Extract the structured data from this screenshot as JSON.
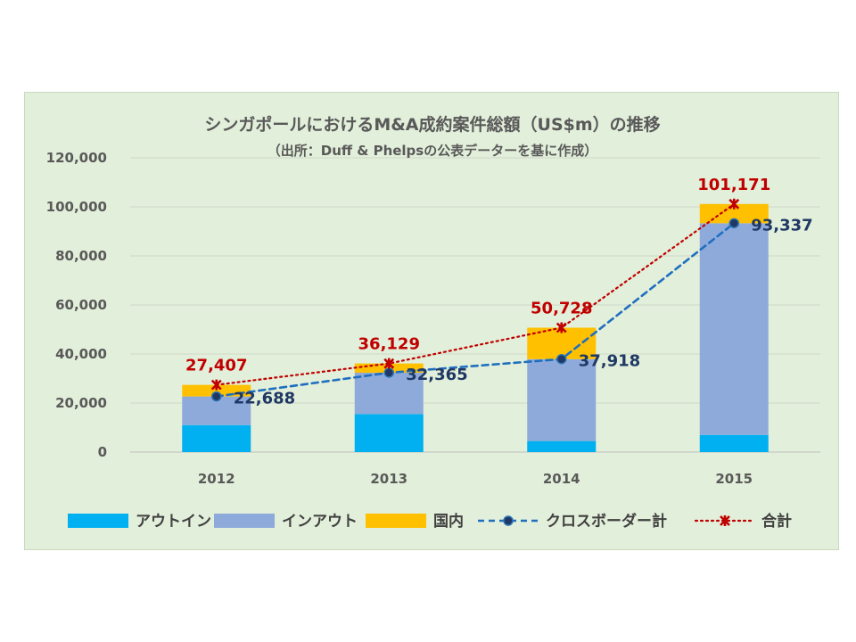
{
  "chart_data": {
    "type": "bar",
    "title": "シンガポールにおけるM&A成約案件総額（US$m）の推移",
    "subtitle": "（出所：Duff & Phelpsの公表データーを基に作成）",
    "categories": [
      "2012",
      "2013",
      "2014",
      "2015"
    ],
    "ylim": [
      0,
      120000
    ],
    "yticks": [
      "0",
      "20,000",
      "40,000",
      "60,000",
      "80,000",
      "100,000",
      "120,000"
    ],
    "ytick_values": [
      0,
      20000,
      40000,
      60000,
      80000,
      100000,
      120000
    ],
    "stacked": true,
    "series": [
      {
        "name": "アウトイン",
        "type": "bar",
        "color": "#00b0f0",
        "values": [
          11000,
          15500,
          4500,
          7000
        ]
      },
      {
        "name": "インアウト",
        "type": "bar",
        "color": "#8eaadb",
        "values": [
          11688,
          16865,
          33418,
          86337
        ]
      },
      {
        "name": "国内",
        "type": "bar",
        "color": "#ffc000",
        "values": [
          4719,
          3764,
          12810,
          7834
        ]
      },
      {
        "name": "クロスボーダー計",
        "type": "line",
        "color": "#1f6fbf",
        "values": [
          22688,
          32365,
          37918,
          93337
        ],
        "labels": [
          "22,688",
          "32,365",
          "37,918",
          "93,337"
        ]
      },
      {
        "name": "合計",
        "type": "line",
        "color": "#c00000",
        "values": [
          27407,
          36129,
          50728,
          101171
        ],
        "labels": [
          "27,407",
          "36,129",
          "50,728",
          "101,171"
        ]
      }
    ],
    "legend_position": "bottom",
    "grid": true
  }
}
